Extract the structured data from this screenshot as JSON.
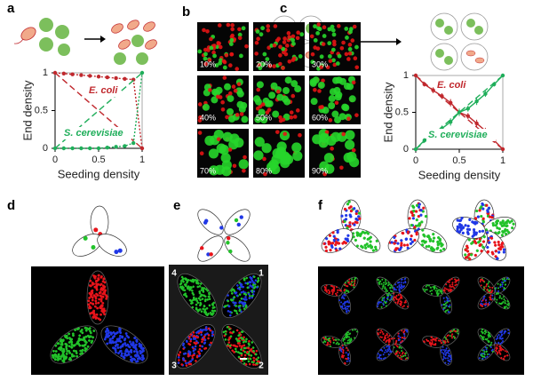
{
  "panels": [
    "a",
    "b",
    "c",
    "d",
    "e",
    "f"
  ],
  "panel_b": {
    "labels": [
      "10%",
      "20%",
      "30%",
      "40%",
      "50%",
      "60%",
      "70%",
      "80%",
      "90%"
    ]
  },
  "panel_e": {
    "numbers": [
      "1",
      "2",
      "3",
      "4"
    ]
  },
  "chart_data": [
    {
      "type": "line",
      "x_label": "Seeding density",
      "y_label": "End density",
      "xlim": [
        0,
        1
      ],
      "ylim": [
        0,
        1
      ],
      "xticks": [
        0,
        0.5,
        1
      ],
      "yticks": [
        0,
        0.5,
        1
      ],
      "annotations": [
        {
          "text": "E. coli",
          "color": "#c0282d"
        },
        {
          "text": "S. cerevisiae",
          "color": "#1fae5a"
        }
      ],
      "series": [
        {
          "name": "E. coli",
          "color": "#c0282d",
          "line_style": "dotted",
          "markers": true,
          "x": [
            0,
            0.1,
            0.2,
            0.3,
            0.4,
            0.5,
            0.6,
            0.7,
            0.8,
            0.9,
            1
          ],
          "values": [
            1,
            0.99,
            0.98,
            0.97,
            0.96,
            0.95,
            0.94,
            0.93,
            0.92,
            0.91,
            0
          ]
        },
        {
          "name": "S. cerevisiae",
          "color": "#1fae5a",
          "line_style": "dotted",
          "markers": true,
          "x": [
            0,
            0.1,
            0.2,
            0.3,
            0.4,
            0.5,
            0.6,
            0.7,
            0.8,
            0.9,
            1
          ],
          "values": [
            0,
            0,
            0,
            0,
            0,
            0,
            0.01,
            0.02,
            0.03,
            0.07,
            1
          ]
        },
        {
          "color": "#c0282d",
          "line_style": "dashed",
          "markers": false,
          "x": [
            0,
            1
          ],
          "values": [
            1,
            0
          ]
        },
        {
          "color": "#1fae5a",
          "line_style": "dashed",
          "markers": false,
          "x": [
            0,
            1
          ],
          "values": [
            0,
            1
          ]
        }
      ]
    },
    {
      "type": "line",
      "x_label": "Seeding density",
      "y_label": "End density",
      "xlim": [
        0,
        1
      ],
      "ylim": [
        0,
        1
      ],
      "xticks": [
        0,
        0.5,
        1
      ],
      "yticks": [
        0,
        0.5,
        1
      ],
      "annotations": [
        {
          "text": "E. coli",
          "color": "#c0282d"
        },
        {
          "text": "S. cerevisiae",
          "color": "#1fae5a"
        }
      ],
      "series": [
        {
          "name": "E. coli",
          "color": "#c0282d",
          "line_style": "solid",
          "markers": true,
          "x": [
            0,
            0.1,
            0.2,
            0.3,
            0.4,
            0.5,
            0.6,
            0.7,
            0.8,
            0.9,
            1
          ],
          "values": [
            1,
            0.88,
            0.8,
            0.72,
            0.63,
            0.5,
            0.45,
            0.35,
            0.25,
            0.12,
            0
          ],
          "errors": [
            0,
            0.03,
            0.04,
            0.04,
            0.05,
            0.05,
            0.04,
            0.05,
            0.04,
            0.03,
            0
          ]
        },
        {
          "name": "S. cerevisiae",
          "color": "#1fae5a",
          "line_style": "solid",
          "markers": true,
          "x": [
            0,
            0.1,
            0.2,
            0.3,
            0.4,
            0.5,
            0.6,
            0.7,
            0.8,
            0.9,
            1
          ],
          "values": [
            0,
            0.12,
            0.2,
            0.28,
            0.37,
            0.5,
            0.55,
            0.65,
            0.75,
            0.88,
            1
          ],
          "errors": [
            0,
            0.03,
            0.04,
            0.04,
            0.05,
            0.05,
            0.04,
            0.05,
            0.04,
            0.03,
            0
          ]
        },
        {
          "color": "#c0282d",
          "line_style": "dashed",
          "markers": false,
          "x": [
            0,
            1
          ],
          "values": [
            1,
            0
          ]
        },
        {
          "color": "#1fae5a",
          "line_style": "dashed",
          "markers": false,
          "x": [
            0,
            1
          ],
          "values": [
            0,
            1
          ]
        }
      ]
    }
  ]
}
